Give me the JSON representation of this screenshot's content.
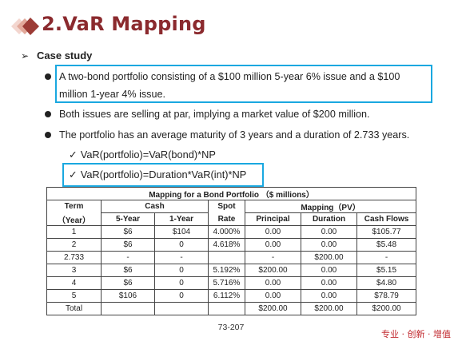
{
  "title": "2.VaR Mapping",
  "case_study": {
    "arrow": "➢",
    "label": "Case study"
  },
  "bullets": [
    {
      "line1": "A two-bond portfolio consisting of a $100 million 5-year 6% issue and a $100",
      "line2": "million 1-year 4% issue."
    },
    {
      "text": "Both issues are selling at par, implying a market value of $200 million."
    },
    {
      "text": "The portfolio has an average maturity of 3 years and a duration of 2.733 years."
    }
  ],
  "checks": [
    {
      "mark": "✓",
      "text": "VaR(portfolio)=VaR(bond)*NP"
    },
    {
      "mark": "✓",
      "text": "VaR(portfolio)=Duration*VaR(int)*NP"
    }
  ],
  "table": {
    "caption": "Mapping for a Bond Portfolio （$ millions）",
    "headers": {
      "term": "Term",
      "term_unit": "（Year）",
      "cash": "Cash",
      "y5": "5-Year",
      "y1": "1-Year",
      "spot": "Spot",
      "rate": "Rate",
      "mapping": "Mapping（PV）",
      "principal": "Principal",
      "duration": "Duration",
      "cash_flows": "Cash Flows"
    },
    "rows": [
      [
        "1",
        "$6",
        "$104",
        "4.000%",
        "0.00",
        "0.00",
        "$105.77"
      ],
      [
        "2",
        "$6",
        "0",
        "4.618%",
        "0.00",
        "0.00",
        "$5.48"
      ],
      [
        "2.733",
        "-",
        "-",
        "",
        "-",
        "$200.00",
        "-"
      ],
      [
        "3",
        "$6",
        "0",
        "5.192%",
        "$200.00",
        "0.00",
        "$5.15"
      ],
      [
        "4",
        "$6",
        "0",
        "5.716%",
        "0.00",
        "0.00",
        "$4.80"
      ],
      [
        "5",
        "$106",
        "0",
        "6.112%",
        "0.00",
        "0.00",
        "$78.79"
      ],
      [
        "Total",
        "",
        "",
        "",
        "$200.00",
        "$200.00",
        "$200.00"
      ]
    ]
  },
  "page_number": "73-207",
  "slogan": "专业 · 创新 · 增值",
  "colors": {
    "title": "#8b2a2e",
    "highlight": "#1aa8e0",
    "slogan": "#c0282e"
  }
}
